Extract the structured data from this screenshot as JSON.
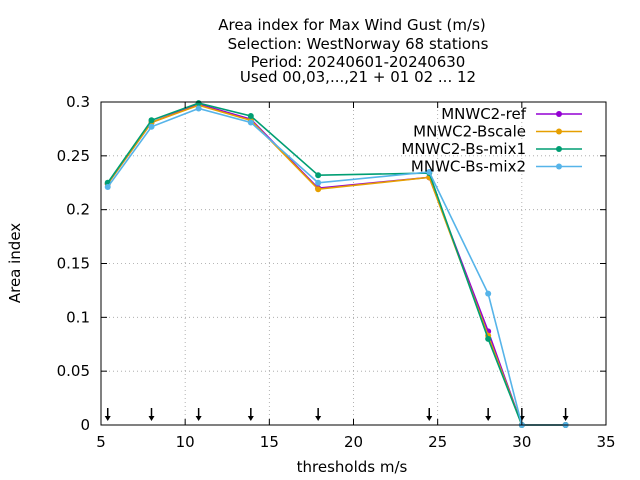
{
  "chart_data": {
    "type": "line",
    "title_lines": [
      "Area index  for Max Wind Gust (m/s)",
      "Selection: WestNorway     68 stations",
      "Period: 20240601-20240630",
      "Used 00,03,...,21 + 01 02 ... 12"
    ],
    "xlabel": "thresholds m/s",
    "ylabel": "Area index",
    "xlim": [
      5,
      35
    ],
    "ylim": [
      0,
      0.3
    ],
    "xticks": [
      5,
      10,
      15,
      20,
      25,
      30,
      35
    ],
    "yticks": [
      0,
      0.05,
      0.1,
      0.15,
      0.2,
      0.25,
      0.3
    ],
    "ytick_labels": [
      "0",
      "0.05",
      "0.1",
      "0.15",
      "0.2",
      "0.25",
      "0.3"
    ],
    "grid": true,
    "legend_position": "top-right",
    "threshold_markers": [
      5.4,
      8.0,
      10.8,
      13.9,
      17.9,
      24.5,
      28.0,
      30.0,
      32.6
    ],
    "series": [
      {
        "name": "MNWC2-ref",
        "color": "#9400d3",
        "x": [
          5.4,
          8.0,
          10.8,
          13.9,
          17.9,
          24.5,
          28.0,
          30.0,
          32.6
        ],
        "y": [
          0.224,
          0.281,
          0.298,
          0.284,
          0.22,
          0.23,
          0.087,
          0.0,
          0.0
        ]
      },
      {
        "name": "MNWC2-Bscale",
        "color": "#e69f00",
        "x": [
          5.4,
          8.0,
          10.8,
          13.9,
          17.9,
          24.5,
          28.0,
          30.0,
          32.6
        ],
        "y": [
          0.224,
          0.281,
          0.297,
          0.283,
          0.219,
          0.23,
          0.083,
          0.0,
          0.0
        ]
      },
      {
        "name": "MNWC2-Bs-mix1",
        "color": "#009e73",
        "x": [
          5.4,
          8.0,
          10.8,
          13.9,
          17.9,
          24.5,
          28.0,
          30.0,
          32.6
        ],
        "y": [
          0.225,
          0.283,
          0.299,
          0.287,
          0.232,
          0.234,
          0.08,
          0.0,
          0.0
        ]
      },
      {
        "name": "MNWC-Bs-mix2",
        "color": "#56b4e9",
        "x": [
          5.4,
          8.0,
          10.8,
          13.9,
          17.9,
          24.5,
          28.0,
          30.0,
          32.6
        ],
        "y": [
          0.221,
          0.277,
          0.294,
          0.281,
          0.225,
          0.235,
          0.122,
          0.0,
          0.0
        ]
      }
    ]
  }
}
